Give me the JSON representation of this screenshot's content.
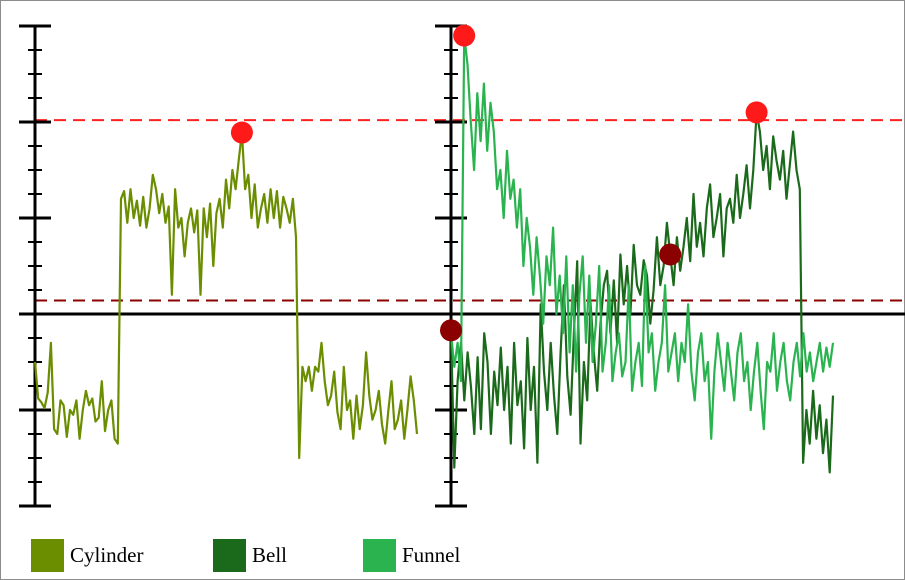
{
  "chart_data": {
    "type": "line",
    "title": "",
    "xlabel": "",
    "ylabel": "",
    "grid": false,
    "legend_position": "bottom-left",
    "ylim": [
      -2,
      3
    ],
    "tick_labels": "none",
    "reference_lines": [
      {
        "kind": "zero",
        "y": 0,
        "color": "#000000",
        "style": "solid"
      },
      {
        "kind": "threshold",
        "y": 0.14,
        "color": "#8b0000",
        "style": "dashed"
      },
      {
        "kind": "threshold",
        "y": 2.02,
        "color": "#ff2020",
        "style": "dashed"
      }
    ],
    "panels": [
      {
        "name": "left",
        "series": [
          "Cylinder"
        ],
        "markers": [
          {
            "series": "Cylinder",
            "x": 65,
            "y": 1.89,
            "color": "#ff1a1a"
          }
        ]
      },
      {
        "name": "right",
        "series": [
          "Bell",
          "Funnel"
        ],
        "markers": [
          {
            "series": "Funnel",
            "x": 4,
            "y": 2.9,
            "color": "#ff1a1a"
          },
          {
            "series": "Bell",
            "x": 92,
            "y": 2.1,
            "color": "#ff1a1a"
          },
          {
            "series": "Bell",
            "x": 66,
            "y": 0.62,
            "color": "#8b0000"
          },
          {
            "series": "Bell",
            "x": 0,
            "y": -0.17,
            "color": "#8b0000"
          }
        ]
      }
    ],
    "series": [
      {
        "name": "Cylinder",
        "color": "#6b8e00",
        "panel": "left",
        "values": [
          -0.5,
          -0.88,
          -0.92,
          -0.98,
          -0.82,
          -0.3,
          -1.2,
          -1.25,
          -0.9,
          -0.95,
          -1.28,
          -1.0,
          -1.05,
          -0.9,
          -1.3,
          -1.0,
          -0.8,
          -0.95,
          -0.88,
          -1.12,
          -1.08,
          -0.7,
          -1.22,
          -1.0,
          -0.9,
          -1.3,
          -1.35,
          1.2,
          1.28,
          0.95,
          1.3,
          1.0,
          1.18,
          0.92,
          1.22,
          0.9,
          1.1,
          1.45,
          1.3,
          1.05,
          1.25,
          0.95,
          1.12,
          0.2,
          1.3,
          0.9,
          1.0,
          0.6,
          0.95,
          1.1,
          0.85,
          1.08,
          0.2,
          1.1,
          0.8,
          1.15,
          0.5,
          1.05,
          1.2,
          0.9,
          1.4,
          1.1,
          1.5,
          1.3,
          1.6,
          1.89,
          1.3,
          1.45,
          1.0,
          1.35,
          0.9,
          1.1,
          1.25,
          0.95,
          1.3,
          1.0,
          1.28,
          0.9,
          1.22,
          1.1,
          0.95,
          1.2,
          0.8,
          -1.5,
          -0.55,
          -0.7,
          -0.55,
          -0.8,
          -0.55,
          -0.6,
          -0.3,
          -0.7,
          -0.95,
          -0.85,
          -0.6,
          -1.02,
          -1.2,
          -0.55,
          -1.0,
          -0.9,
          -1.3,
          -0.85,
          -1.2,
          -0.95,
          -0.4,
          -0.85,
          -1.1,
          -1.0,
          -0.8,
          -1.15,
          -1.35,
          -1.0,
          -0.7,
          -1.2,
          -1.1,
          -0.9,
          -1.3,
          -1.0,
          -0.65,
          -0.9,
          -1.25
        ]
      },
      {
        "name": "Bell",
        "color": "#1b6a1b",
        "panel": "right",
        "values": [
          -0.17,
          -1.6,
          -0.7,
          -0.3,
          -0.9,
          -0.4,
          -0.75,
          -1.25,
          -0.45,
          -1.2,
          -0.2,
          -0.5,
          -1.25,
          -0.6,
          -0.95,
          -0.35,
          -1.0,
          -0.55,
          -1.35,
          -0.3,
          -0.95,
          -0.7,
          -1.4,
          -0.25,
          -1.0,
          -0.55,
          -1.55,
          0.1,
          -0.6,
          -1.0,
          -0.3,
          -0.85,
          -1.25,
          -0.4,
          0.3,
          -0.65,
          -1.05,
          -0.2,
          0.55,
          -1.35,
          -0.5,
          -0.9,
          0.12,
          -0.4,
          -0.8,
          -0.1,
          0.3,
          0.45,
          -0.2,
          0.35,
          -0.3,
          0.62,
          0.1,
          0.5,
          0.0,
          0.72,
          0.3,
          0.2,
          0.56,
          0.4,
          -0.1,
          0.25,
          0.8,
          0.3,
          0.5,
          0.95,
          0.62,
          0.3,
          0.8,
          0.45,
          0.7,
          1.0,
          0.55,
          1.25,
          0.7,
          0.95,
          0.6,
          1.1,
          1.35,
          0.8,
          1.0,
          1.25,
          0.6,
          1.1,
          1.2,
          0.95,
          1.45,
          1.0,
          1.25,
          1.55,
          1.1,
          1.5,
          2.1,
          1.9,
          1.5,
          1.75,
          1.3,
          1.85,
          1.6,
          1.4,
          1.7,
          1.2,
          1.55,
          1.9,
          1.5,
          1.3,
          -1.55,
          -1.0,
          -1.35,
          -0.8,
          -1.3,
          -0.95,
          -1.45,
          -1.1,
          -1.65,
          -0.85
        ]
      },
      {
        "name": "Funnel",
        "color": "#2ab34f",
        "panel": "right",
        "values": [
          -0.2,
          -0.55,
          -0.3,
          -0.7,
          2.9,
          2.6,
          2.0,
          1.5,
          2.3,
          1.8,
          2.4,
          1.7,
          2.2,
          1.9,
          1.3,
          1.5,
          1.0,
          1.7,
          1.2,
          1.4,
          0.9,
          1.3,
          0.5,
          1.0,
          0.7,
          0.2,
          0.8,
          0.4,
          -0.1,
          0.6,
          0.3,
          0.9,
          0.0,
          0.4,
          -0.2,
          0.6,
          -0.4,
          0.3,
          -0.6,
          0.2,
          0.6,
          -0.3,
          0.4,
          -0.5,
          -0.1,
          0.5,
          -0.6,
          -0.3,
          0.3,
          -0.7,
          -0.4,
          -0.2,
          -0.65,
          -0.5,
          0.3,
          -0.8,
          -0.5,
          -0.3,
          -0.75,
          0.5,
          -0.4,
          -0.2,
          -0.8,
          -0.5,
          -0.3,
          0.3,
          -0.6,
          -0.4,
          -0.2,
          -0.7,
          -0.3,
          -0.5,
          0.1,
          -0.6,
          -0.9,
          -0.4,
          -0.2,
          -0.7,
          -0.5,
          -1.3,
          -0.6,
          -0.2,
          -0.5,
          -0.8,
          -0.3,
          -0.6,
          -0.9,
          -0.4,
          -0.2,
          -0.7,
          -0.5,
          -1.0,
          -0.6,
          -0.3,
          -0.8,
          -1.2,
          -0.5,
          -0.6,
          -0.2,
          -0.8,
          -0.5,
          -0.3,
          -0.7,
          -0.9,
          -0.5,
          -0.3,
          -0.65,
          -0.2,
          -0.6,
          -0.4,
          -0.7,
          -0.5,
          -0.3,
          -0.6,
          -0.35,
          -0.55,
          -0.3
        ]
      }
    ]
  }
}
